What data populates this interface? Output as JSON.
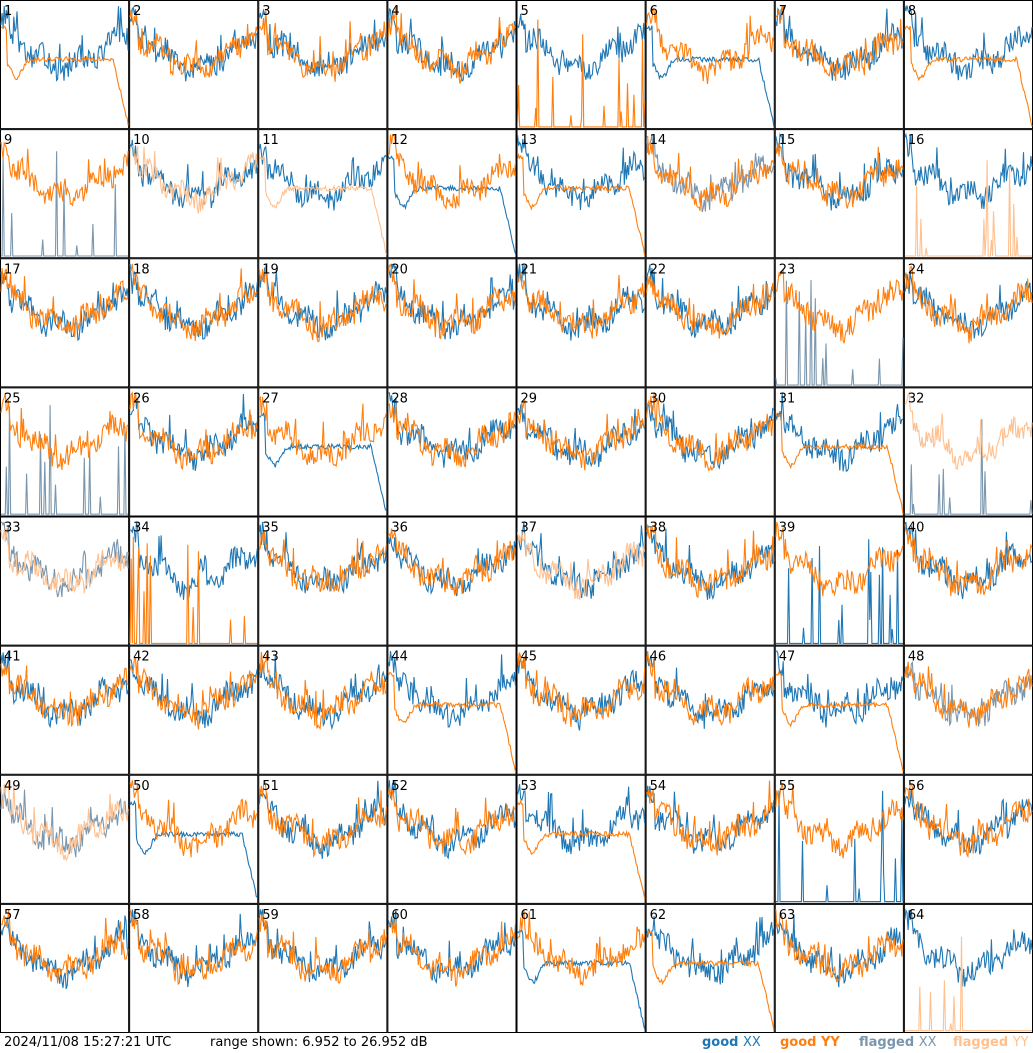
{
  "footer": {
    "timestamp": "2024/11/08 15:27:21 UTC",
    "range_text": "range shown: 6.952 to 26.952 dB"
  },
  "legend": [
    {
      "key": "good_xx",
      "prefix": "good",
      "pol": "XX",
      "color": "#1f77b4"
    },
    {
      "key": "good_yy",
      "prefix": "good",
      "pol": "YY",
      "color": "#ff7f0e"
    },
    {
      "key": "flagged_xx",
      "prefix": "flagged",
      "pol": "XX",
      "color": "#7a96ad"
    },
    {
      "key": "flagged_yy",
      "prefix": "flagged",
      "pol": "YY",
      "color": "#ffc08f"
    }
  ],
  "colors": {
    "good_xx": "#1f77b4",
    "good_yy": "#ff7f0e",
    "flagged_xx": "#7a96ad",
    "flagged_yy": "#ffc08f"
  },
  "chart_data": {
    "type": "line",
    "grid": "8x8 small multiples",
    "y_range_db": [
      6.952,
      26.952
    ],
    "panels": [
      {
        "id": "1",
        "xx": "good",
        "yy": "good",
        "xx_shape": "normal",
        "yy_shape": "dropoff"
      },
      {
        "id": "2",
        "xx": "good",
        "yy": "good",
        "xx_shape": "normal",
        "yy_shape": "normal"
      },
      {
        "id": "3",
        "xx": "good",
        "yy": "good",
        "xx_shape": "normal",
        "yy_shape": "normal"
      },
      {
        "id": "4",
        "xx": "good",
        "yy": "good",
        "xx_shape": "normal",
        "yy_shape": "normal"
      },
      {
        "id": "5",
        "xx": "good",
        "yy": "good",
        "xx_shape": "normal",
        "yy_shape": "spikes"
      },
      {
        "id": "6",
        "xx": "good",
        "yy": "good",
        "xx_shape": "dropoff",
        "yy_shape": "normal"
      },
      {
        "id": "7",
        "xx": "good",
        "yy": "good",
        "xx_shape": "normal",
        "yy_shape": "normal"
      },
      {
        "id": "8",
        "xx": "good",
        "yy": "good",
        "xx_shape": "normal",
        "yy_shape": "dropoff"
      },
      {
        "id": "9",
        "xx": "flagged",
        "yy": "good",
        "xx_shape": "spikes",
        "yy_shape": "normal"
      },
      {
        "id": "10",
        "xx": "good",
        "yy": "flagged",
        "xx_shape": "normal",
        "yy_shape": "normal"
      },
      {
        "id": "11",
        "xx": "good",
        "yy": "flagged",
        "xx_shape": "normal",
        "yy_shape": "dropoff"
      },
      {
        "id": "12",
        "xx": "good",
        "yy": "good",
        "xx_shape": "dropoff",
        "yy_shape": "normal"
      },
      {
        "id": "13",
        "xx": "good",
        "yy": "good",
        "xx_shape": "normal",
        "yy_shape": "dropoff"
      },
      {
        "id": "14",
        "xx": "flagged",
        "yy": "good",
        "xx_shape": "normal",
        "yy_shape": "normal"
      },
      {
        "id": "15",
        "xx": "good",
        "yy": "good",
        "xx_shape": "normal",
        "yy_shape": "normal"
      },
      {
        "id": "16",
        "xx": "good",
        "yy": "flagged",
        "xx_shape": "normal",
        "yy_shape": "spikes"
      },
      {
        "id": "17",
        "xx": "good",
        "yy": "good",
        "xx_shape": "normal",
        "yy_shape": "normal"
      },
      {
        "id": "18",
        "xx": "good",
        "yy": "good",
        "xx_shape": "normal",
        "yy_shape": "normal"
      },
      {
        "id": "19",
        "xx": "good",
        "yy": "good",
        "xx_shape": "normal",
        "yy_shape": "normal"
      },
      {
        "id": "20",
        "xx": "good",
        "yy": "good",
        "xx_shape": "normal",
        "yy_shape": "normal"
      },
      {
        "id": "21",
        "xx": "good",
        "yy": "good",
        "xx_shape": "normal",
        "yy_shape": "normal"
      },
      {
        "id": "22",
        "xx": "good",
        "yy": "good",
        "xx_shape": "normal",
        "yy_shape": "normal"
      },
      {
        "id": "23",
        "xx": "flagged",
        "yy": "good",
        "xx_shape": "spikes",
        "yy_shape": "normal"
      },
      {
        "id": "24",
        "xx": "good",
        "yy": "good",
        "xx_shape": "normal",
        "yy_shape": "normal"
      },
      {
        "id": "25",
        "xx": "flagged",
        "yy": "good",
        "xx_shape": "spikes",
        "yy_shape": "normal"
      },
      {
        "id": "26",
        "xx": "good",
        "yy": "good",
        "xx_shape": "normal",
        "yy_shape": "normal"
      },
      {
        "id": "27",
        "xx": "good",
        "yy": "good",
        "xx_shape": "dropoff",
        "yy_shape": "normal"
      },
      {
        "id": "28",
        "xx": "good",
        "yy": "good",
        "xx_shape": "normal",
        "yy_shape": "normal"
      },
      {
        "id": "29",
        "xx": "good",
        "yy": "good",
        "xx_shape": "normal",
        "yy_shape": "normal"
      },
      {
        "id": "30",
        "xx": "good",
        "yy": "good",
        "xx_shape": "normal",
        "yy_shape": "normal"
      },
      {
        "id": "31",
        "xx": "good",
        "yy": "good",
        "xx_shape": "normal",
        "yy_shape": "dropoff"
      },
      {
        "id": "32",
        "xx": "flagged",
        "yy": "flagged",
        "xx_shape": "spikes",
        "yy_shape": "normal"
      },
      {
        "id": "33",
        "xx": "flagged",
        "yy": "flagged",
        "xx_shape": "normal",
        "yy_shape": "normal"
      },
      {
        "id": "34",
        "xx": "good",
        "yy": "good",
        "xx_shape": "normal",
        "yy_shape": "spikes"
      },
      {
        "id": "35",
        "xx": "good",
        "yy": "good",
        "xx_shape": "normal",
        "yy_shape": "normal"
      },
      {
        "id": "36",
        "xx": "good",
        "yy": "good",
        "xx_shape": "normal",
        "yy_shape": "normal"
      },
      {
        "id": "37",
        "xx": "good",
        "yy": "flagged",
        "xx_shape": "normal",
        "yy_shape": "normal"
      },
      {
        "id": "38",
        "xx": "good",
        "yy": "good",
        "xx_shape": "normal",
        "yy_shape": "normal"
      },
      {
        "id": "39",
        "xx": "good",
        "yy": "good",
        "xx_shape": "spikes",
        "yy_shape": "normal"
      },
      {
        "id": "40",
        "xx": "good",
        "yy": "good",
        "xx_shape": "normal",
        "yy_shape": "normal"
      },
      {
        "id": "41",
        "xx": "good",
        "yy": "good",
        "xx_shape": "normal",
        "yy_shape": "normal"
      },
      {
        "id": "42",
        "xx": "good",
        "yy": "good",
        "xx_shape": "normal",
        "yy_shape": "normal"
      },
      {
        "id": "43",
        "xx": "good",
        "yy": "good",
        "xx_shape": "normal",
        "yy_shape": "normal"
      },
      {
        "id": "44",
        "xx": "good",
        "yy": "good",
        "xx_shape": "normal",
        "yy_shape": "dropoff"
      },
      {
        "id": "45",
        "xx": "good",
        "yy": "good",
        "xx_shape": "normal",
        "yy_shape": "normal"
      },
      {
        "id": "46",
        "xx": "good",
        "yy": "good",
        "xx_shape": "normal",
        "yy_shape": "normal"
      },
      {
        "id": "47",
        "xx": "good",
        "yy": "good",
        "xx_shape": "normal",
        "yy_shape": "dropoff"
      },
      {
        "id": "48",
        "xx": "flagged",
        "yy": "good",
        "xx_shape": "normal",
        "yy_shape": "normal"
      },
      {
        "id": "49",
        "xx": "flagged",
        "yy": "flagged",
        "xx_shape": "normal",
        "yy_shape": "normal"
      },
      {
        "id": "50",
        "xx": "good",
        "yy": "good",
        "xx_shape": "dropoff",
        "yy_shape": "normal"
      },
      {
        "id": "51",
        "xx": "good",
        "yy": "good",
        "xx_shape": "normal",
        "yy_shape": "normal"
      },
      {
        "id": "52",
        "xx": "good",
        "yy": "good",
        "xx_shape": "normal",
        "yy_shape": "normal"
      },
      {
        "id": "53",
        "xx": "good",
        "yy": "good",
        "xx_shape": "normal",
        "yy_shape": "dropoff"
      },
      {
        "id": "54",
        "xx": "good",
        "yy": "good",
        "xx_shape": "normal",
        "yy_shape": "normal"
      },
      {
        "id": "55",
        "xx": "good",
        "yy": "good",
        "xx_shape": "spikes",
        "yy_shape": "normal"
      },
      {
        "id": "56",
        "xx": "good",
        "yy": "good",
        "xx_shape": "normal",
        "yy_shape": "normal"
      },
      {
        "id": "57",
        "xx": "good",
        "yy": "good",
        "xx_shape": "normal",
        "yy_shape": "normal"
      },
      {
        "id": "58",
        "xx": "good",
        "yy": "good",
        "xx_shape": "normal",
        "yy_shape": "normal"
      },
      {
        "id": "59",
        "xx": "good",
        "yy": "good",
        "xx_shape": "normal",
        "yy_shape": "normal"
      },
      {
        "id": "60",
        "xx": "good",
        "yy": "good",
        "xx_shape": "normal",
        "yy_shape": "normal"
      },
      {
        "id": "61",
        "xx": "good",
        "yy": "good",
        "xx_shape": "dropoff",
        "yy_shape": "normal"
      },
      {
        "id": "62",
        "xx": "good",
        "yy": "good",
        "xx_shape": "normal",
        "yy_shape": "dropoff"
      },
      {
        "id": "63",
        "xx": "good",
        "yy": "good",
        "xx_shape": "normal",
        "yy_shape": "normal"
      },
      {
        "id": "64",
        "xx": "good",
        "yy": "flagged",
        "xx_shape": "normal",
        "yy_shape": "spikes"
      }
    ]
  }
}
